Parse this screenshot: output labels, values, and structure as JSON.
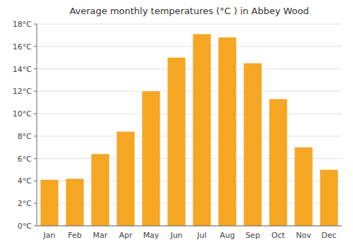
{
  "chart_data": {
    "type": "bar",
    "title": "Average monthly temperatures (°C ) in Abbey Wood",
    "categories": [
      "Jan",
      "Feb",
      "Mar",
      "Apr",
      "May",
      "Jun",
      "Jul",
      "Aug",
      "Sep",
      "Oct",
      "Nov",
      "Dec"
    ],
    "values": [
      4.1,
      4.2,
      6.4,
      8.4,
      12.0,
      15.0,
      17.1,
      16.8,
      14.5,
      11.3,
      7.0,
      5.0
    ],
    "color": "#F5A623",
    "ylim": [
      0,
      18
    ],
    "yticks": [
      {
        "value": 0,
        "label": "0°C"
      },
      {
        "value": 2,
        "label": "2°C"
      },
      {
        "value": 4,
        "label": "4°C"
      },
      {
        "value": 6,
        "label": "6°C"
      },
      {
        "value": 8,
        "label": "8°C"
      },
      {
        "value": 10,
        "label": "10°C"
      },
      {
        "value": 12,
        "label": "12°C"
      },
      {
        "value": 14,
        "label": "14°C"
      },
      {
        "value": 16,
        "label": "16°C"
      },
      {
        "value": 18,
        "label": "18°C"
      }
    ],
    "grid": true
  }
}
